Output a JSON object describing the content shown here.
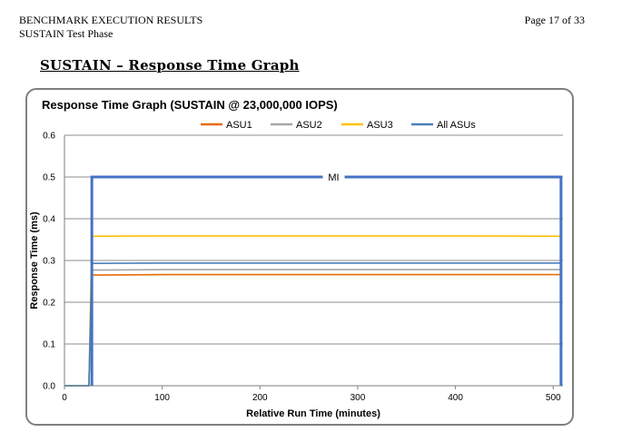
{
  "header": {
    "line1": "BENCHMARK EXECUTION RESULTS",
    "line2": "SUSTAIN Test Phase",
    "page": "Page 17 of 33"
  },
  "section_title": "SUSTAIN – Response Time Graph",
  "chart_data": {
    "type": "line",
    "title": "Response Time Graph (SUSTAIN @ 23,000,000 IOPS)",
    "xlabel": "Relative Run Time (minutes)",
    "ylabel": "Response Time (ms)",
    "xlim": [
      0,
      510
    ],
    "ylim": [
      0,
      0.6
    ],
    "xticks": [
      "0",
      "100",
      "200",
      "300",
      "400",
      "500"
    ],
    "yticks": [
      "0.0",
      "0.1",
      "0.2",
      "0.3",
      "0.4",
      "0.5",
      "0.6"
    ],
    "grid": true,
    "legend_position": "top",
    "series": [
      {
        "name": "ASU1",
        "color": "#e46c0a",
        "x": [
          0,
          25,
          28,
          100,
          200,
          300,
          400,
          508
        ],
        "y": [
          0,
          0,
          0.265,
          0.266,
          0.266,
          0.266,
          0.266,
          0.266
        ]
      },
      {
        "name": "ASU2",
        "color": "#a6a6a6",
        "x": [
          0,
          25,
          28,
          100,
          200,
          300,
          400,
          508
        ],
        "y": [
          0,
          0,
          0.277,
          0.278,
          0.278,
          0.278,
          0.278,
          0.278
        ]
      },
      {
        "name": "ASU3",
        "color": "#ffc000",
        "x": [
          0,
          25,
          28,
          100,
          200,
          300,
          400,
          508
        ],
        "y": [
          0,
          0,
          0.358,
          0.359,
          0.359,
          0.359,
          0.359,
          0.358
        ]
      },
      {
        "name": "All ASUs",
        "color": "#4a7ebb",
        "x": [
          0,
          25,
          28,
          100,
          200,
          300,
          400,
          508
        ],
        "y": [
          0,
          0,
          0.293,
          0.294,
          0.294,
          0.294,
          0.294,
          0.294
        ]
      }
    ],
    "annotation": {
      "label": "MI",
      "x_start": 28,
      "x_end": 508,
      "level": 0.5,
      "color": "#4472c4"
    }
  }
}
